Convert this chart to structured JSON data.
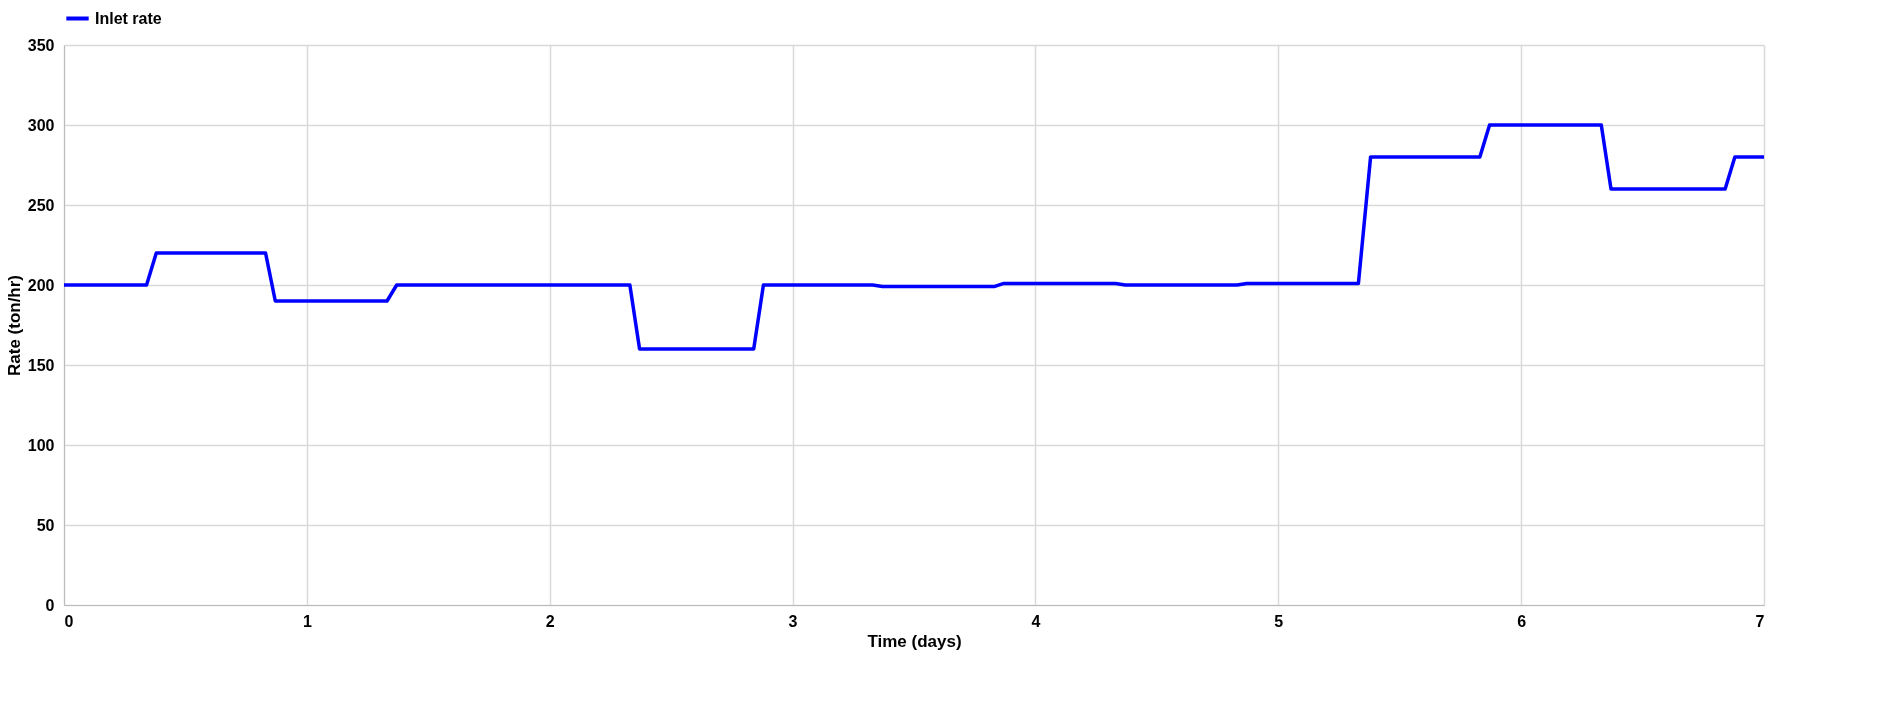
{
  "chart_data": {
    "type": "line",
    "xlabel": "Time (days)",
    "ylabel": "Rate (ton/hr)",
    "xlim": [
      0,
      7
    ],
    "xticks": [
      0,
      1,
      2,
      3,
      4,
      5,
      6,
      7
    ],
    "ylim": [
      0,
      350
    ],
    "yticks": [
      0,
      50,
      100,
      150,
      200,
      250,
      300,
      350
    ],
    "grid": true,
    "legend": "top",
    "marker": "none",
    "line_style": "solid",
    "series": [
      {
        "name": "Inlet rate",
        "color": "#0000ff",
        "x": [
          0,
          0.34,
          0.38,
          0.83,
          0.87,
          1.33,
          1.37,
          2.33,
          2.37,
          2.84,
          2.88,
          3.33,
          3.37,
          3.83,
          3.87,
          4.33,
          4.37,
          4.83,
          4.87,
          5.33,
          5.38,
          5.83,
          5.87,
          6.33,
          6.37,
          6.84,
          6.88,
          7
        ],
        "values": [
          200,
          200,
          220,
          220,
          190,
          190,
          200,
          200,
          160,
          160,
          200,
          200,
          199,
          199,
          201,
          201,
          200,
          200,
          201,
          201,
          280,
          280,
          300,
          300,
          260,
          260,
          280,
          280
        ]
      }
    ]
  }
}
